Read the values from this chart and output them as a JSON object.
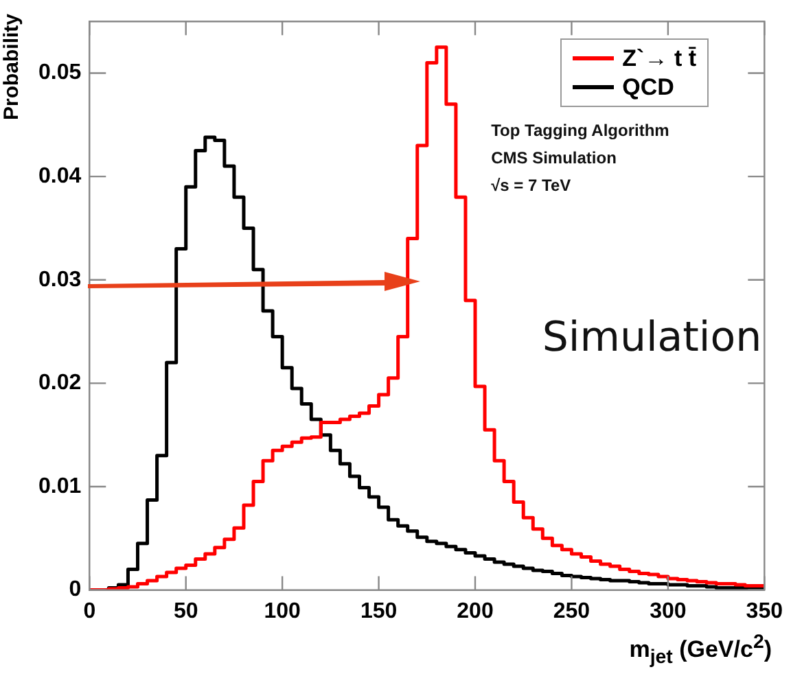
{
  "chart_data": {
    "type": "histogram",
    "xlabel": "m$_{jet}$ (GeV/c$^{2}$)",
    "ylabel": "Probability",
    "bins": [
      0,
      5,
      10,
      15,
      20,
      25,
      30,
      35,
      40,
      45,
      50,
      55,
      60,
      65,
      70,
      75,
      80,
      85,
      90,
      95,
      100,
      105,
      110,
      115,
      120,
      125,
      130,
      135,
      140,
      145,
      150,
      155,
      160,
      165,
      170,
      175,
      180,
      185,
      190,
      195,
      200,
      205,
      210,
      215,
      220,
      225,
      230,
      235,
      240,
      245,
      250,
      255,
      260,
      265,
      270,
      275,
      280,
      285,
      290,
      295,
      300,
      305,
      310,
      315,
      320,
      325,
      330,
      335,
      340,
      345,
      350
    ],
    "series": [
      {
        "name": "Z`→ t t̄",
        "color": "#ff0000",
        "values": [
          0,
          0,
          0.0001,
          0.0002,
          0.0003,
          0.0006,
          0.0009,
          0.0013,
          0.0017,
          0.0021,
          0.0024,
          0.003,
          0.0035,
          0.0041,
          0.0049,
          0.006,
          0.0082,
          0.0105,
          0.0125,
          0.0135,
          0.0139,
          0.0143,
          0.0147,
          0.0148,
          0.0162,
          0.0162,
          0.0165,
          0.0168,
          0.0171,
          0.0178,
          0.0189,
          0.0205,
          0.0245,
          0.034,
          0.043,
          0.051,
          0.0525,
          0.047,
          0.038,
          0.028,
          0.0197,
          0.0155,
          0.0125,
          0.0105,
          0.0085,
          0.007,
          0.0059,
          0.005,
          0.0043,
          0.0039,
          0.0035,
          0.0032,
          0.0028,
          0.0025,
          0.0023,
          0.002,
          0.0018,
          0.0016,
          0.0015,
          0.0013,
          0.0011,
          0.001,
          0.0009,
          0.0008,
          0.0007,
          0.0006,
          0.0006,
          0.0005,
          0.0004,
          0.0004
        ]
      },
      {
        "name": "QCD",
        "color": "#000000",
        "values": [
          0,
          0,
          0.0002,
          0.0005,
          0.002,
          0.0045,
          0.0087,
          0.013,
          0.022,
          0.033,
          0.039,
          0.0425,
          0.0438,
          0.0435,
          0.041,
          0.038,
          0.035,
          0.031,
          0.027,
          0.0245,
          0.0215,
          0.0195,
          0.018,
          0.0165,
          0.015,
          0.0135,
          0.0122,
          0.011,
          0.0099,
          0.009,
          0.008,
          0.0068,
          0.0062,
          0.0057,
          0.0051,
          0.0047,
          0.0045,
          0.0042,
          0.0039,
          0.0036,
          0.0033,
          0.003,
          0.0027,
          0.0025,
          0.0023,
          0.0021,
          0.0019,
          0.0018,
          0.0016,
          0.0014,
          0.0013,
          0.0012,
          0.0011,
          0.001,
          0.0009,
          0.0009,
          0.0008,
          0.0007,
          0.0006,
          0.0006,
          0.0005,
          0.0005,
          0.0004,
          0.0004,
          0.0003,
          0.0002,
          0.0002,
          0.0002,
          0.0001,
          0.0001
        ]
      }
    ],
    "xlim": [
      0,
      350
    ],
    "xticks": [
      0,
      50,
      100,
      150,
      200,
      250,
      300,
      350
    ],
    "ylim": [
      0,
      0.055
    ],
    "yticks": [
      0,
      0.01,
      0.02,
      0.03,
      0.04,
      0.05
    ],
    "grid": false,
    "legend": "top right",
    "annotations": [
      "Top Tagging Algorithm",
      "CMS Simulation",
      "√s = 7 TeV",
      "Simulation"
    ]
  }
}
